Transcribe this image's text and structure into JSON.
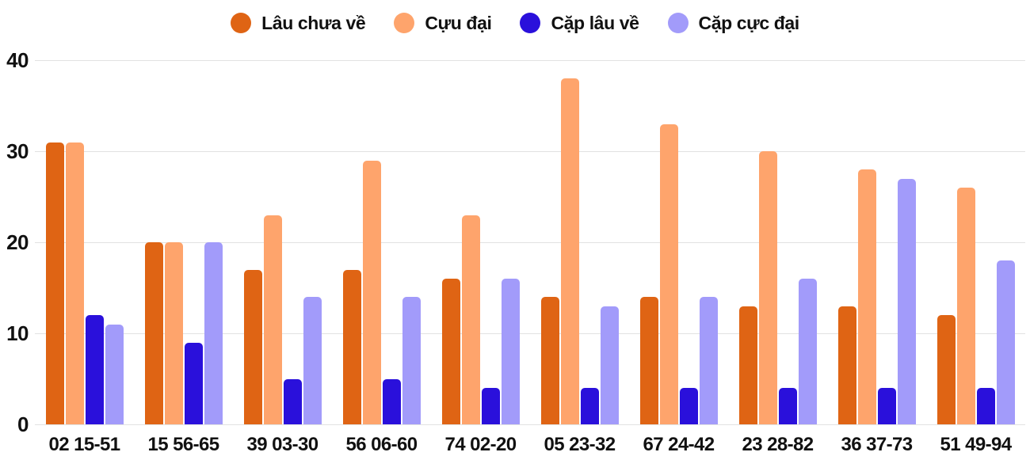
{
  "chart_data": {
    "type": "bar",
    "title": "",
    "categories": [
      "02 15-51",
      "15 56-65",
      "39 03-30",
      "56 06-60",
      "74 02-20",
      "05 23-32",
      "67 24-42",
      "23 28-82",
      "36 37-73",
      "51 49-94"
    ],
    "series": [
      {
        "name": "Lâu chưa về",
        "color": "#DF6414",
        "values": [
          31,
          20,
          17,
          17,
          16,
          14,
          14,
          13,
          13,
          12
        ]
      },
      {
        "name": "Cựu đại",
        "color": "#FEA46C",
        "values": [
          31,
          20,
          23,
          29,
          23,
          38,
          33,
          30,
          28,
          26
        ]
      },
      {
        "name": "Cặp lâu về",
        "color": "#2A10DB",
        "values": [
          12,
          9,
          5,
          5,
          4,
          4,
          4,
          4,
          4,
          4
        ]
      },
      {
        "name": "Cặp cực đại",
        "color": "#A29BFA",
        "values": [
          11,
          20,
          14,
          14,
          16,
          13,
          14,
          16,
          27,
          18
        ]
      }
    ],
    "y_axis": {
      "min": 0,
      "max": 40,
      "ticks": [
        0,
        10,
        20,
        30,
        40
      ]
    },
    "grid": true,
    "legend_position": "top"
  },
  "colors": {
    "background": "#ffffff",
    "gridline": "#e2e2e2",
    "axis_text": "#111111"
  }
}
